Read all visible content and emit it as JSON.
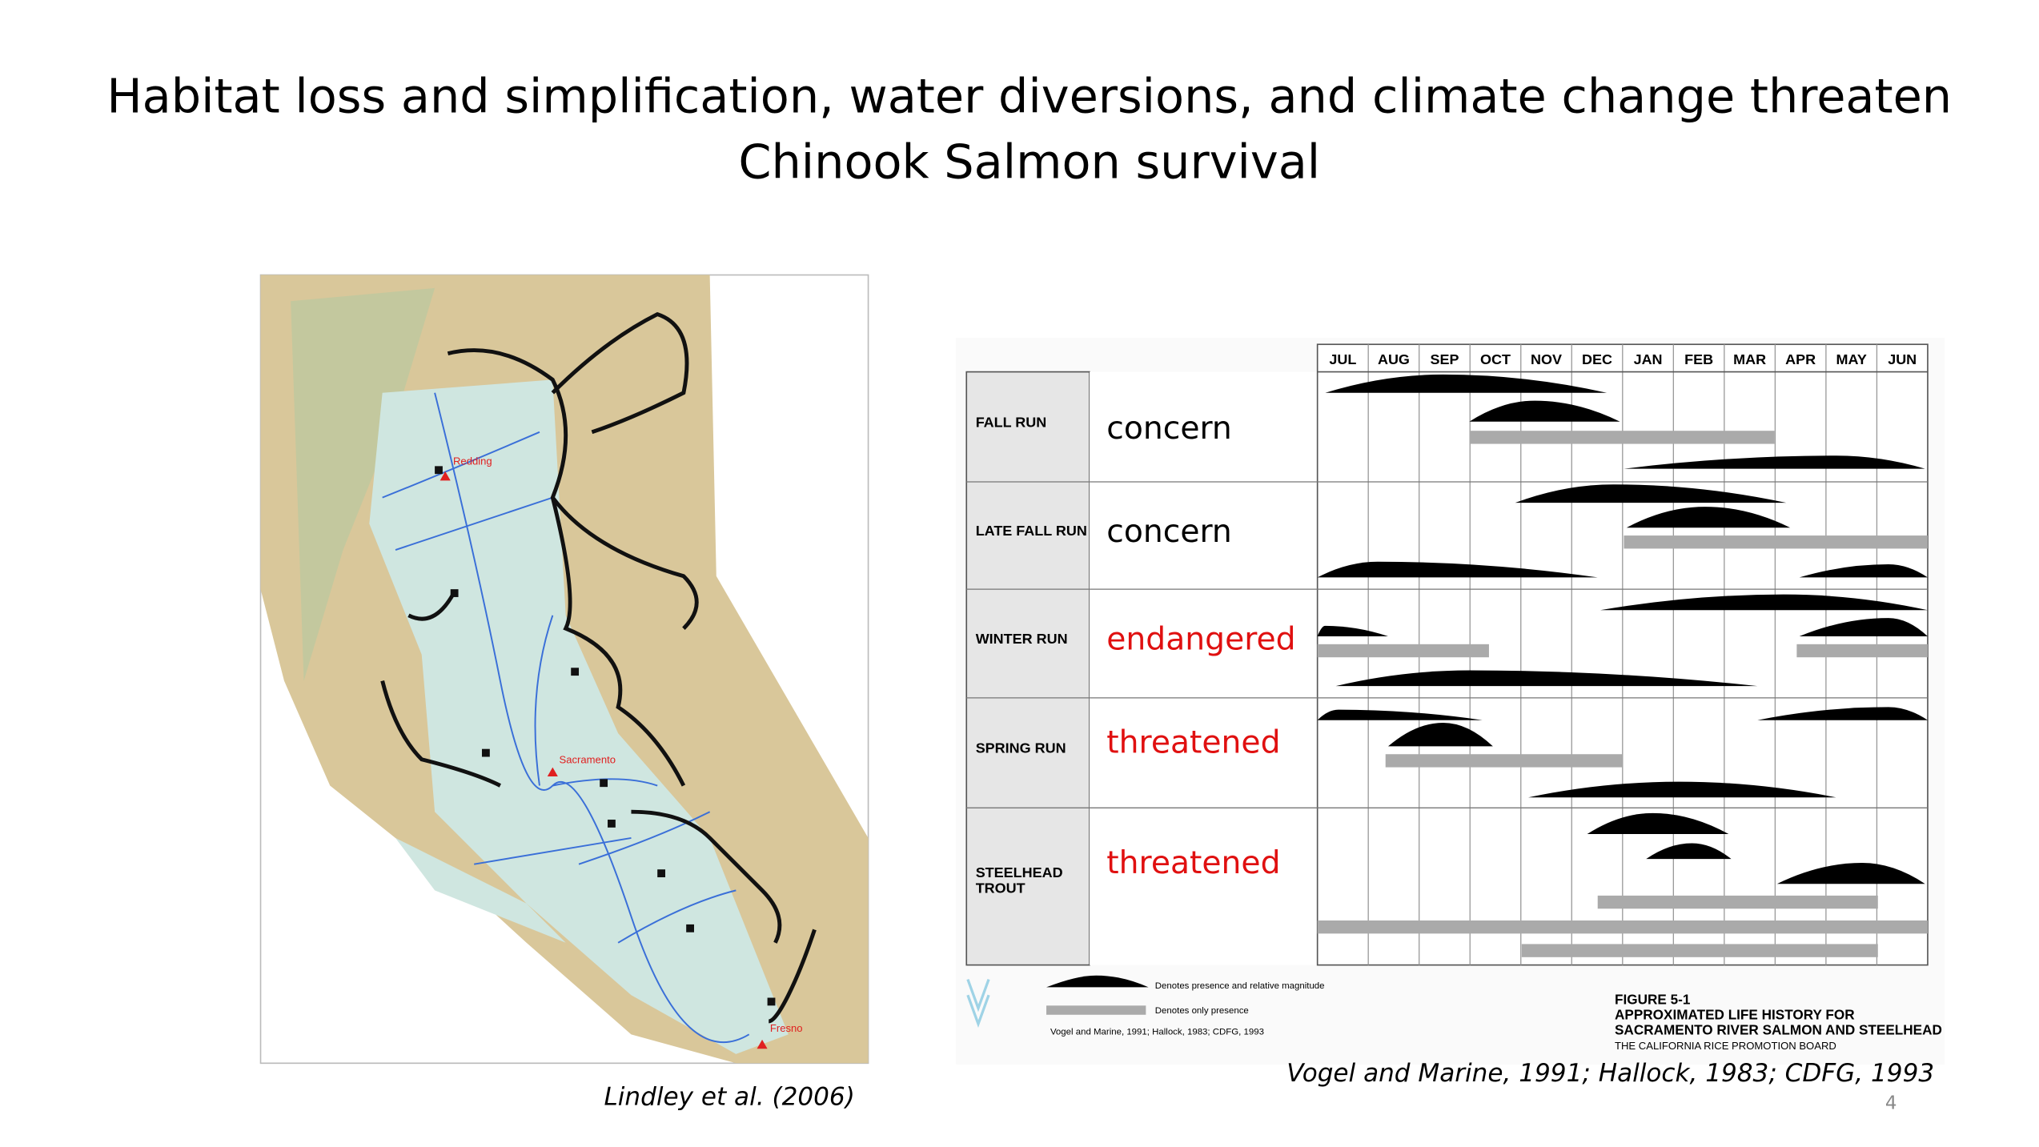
{
  "title": [
    "Habitat loss and simplification, water diversions, and climate change threaten",
    "Chinook Salmon survival"
  ],
  "map": {
    "cities": [
      "Redding",
      "Sacramento",
      "Fresno"
    ],
    "caption": "Lindley et al. (2006)"
  },
  "life_history": {
    "months": [
      "JUL",
      "AUG",
      "SEP",
      "OCT",
      "NOV",
      "DEC",
      "JAN",
      "FEB",
      "MAR",
      "APR",
      "MAY",
      "JUN"
    ],
    "runs": [
      {
        "label": [
          "FALL RUN"
        ],
        "status": "concern"
      },
      {
        "label": [
          "LATE FALL RUN"
        ],
        "status": "concern"
      },
      {
        "label": [
          "WINTER RUN"
        ],
        "status": "endangered"
      },
      {
        "label": [
          "SPRING RUN"
        ],
        "status": "threatened"
      },
      {
        "label": [
          "STEELHEAD",
          "TROUT"
        ],
        "status": "threatened"
      }
    ],
    "legend": [
      "Denotes presence and relative magnitude",
      "Denotes only presence"
    ],
    "source": "Vogel and Marine, 1991; Hallock, 1983; CDFG, 1993",
    "figure_caption": [
      "FIGURE 5-1",
      "APPROXIMATED LIFE HISTORY FOR",
      "SACRAMENTO  RIVER SALMON AND STEELHEAD",
      "THE CALIFORNIA RICE PROMOTION BOARD"
    ]
  },
  "citation": "Vogel and Marine, 1991; Hallock, 1983; CDFG, 1993",
  "page_number": "4"
}
